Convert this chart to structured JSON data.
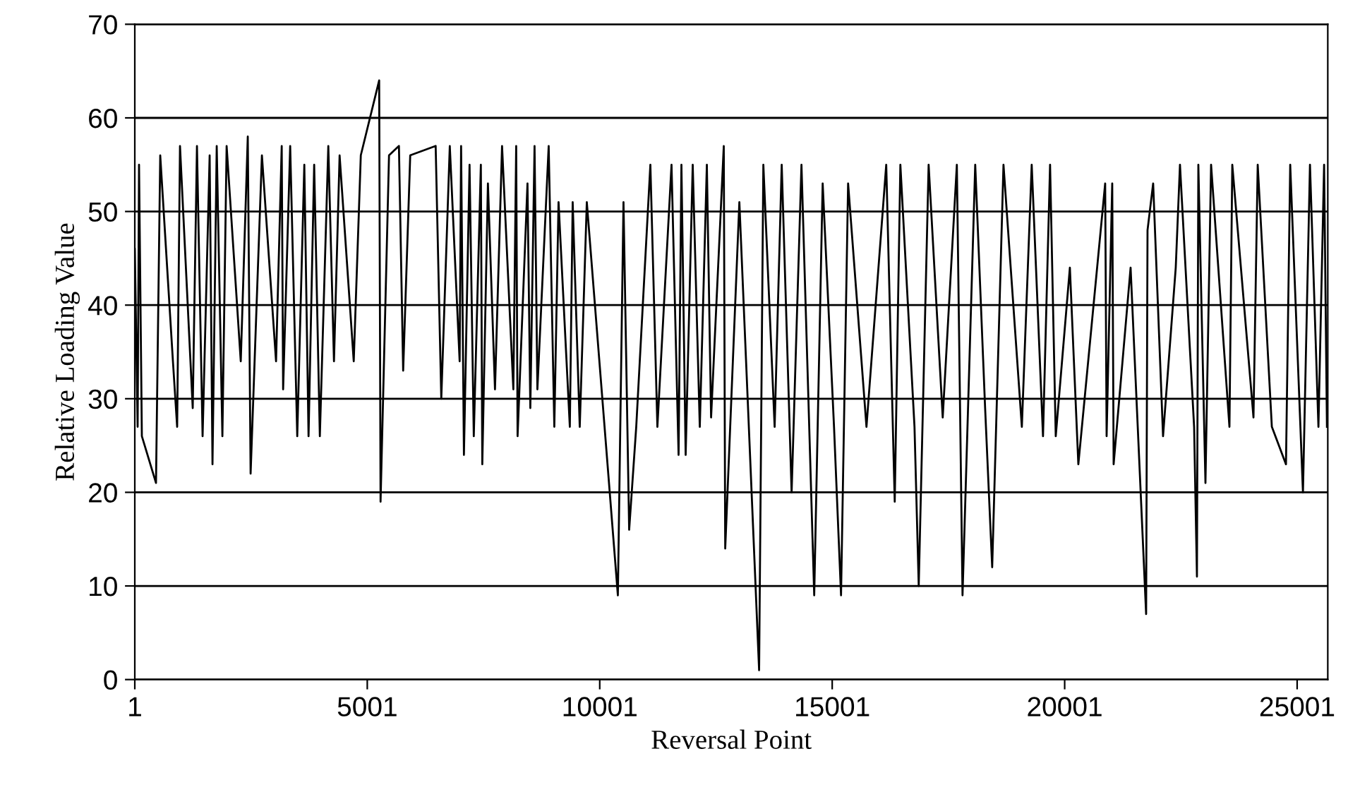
{
  "chart_data": {
    "type": "line",
    "xlabel": "Reversal Point",
    "ylabel": "Relative Loading Value",
    "x": [
      1,
      62,
      92,
      153,
      457,
      548,
      821,
      912,
      973,
      1247,
      1338,
      1459,
      1611,
      1672,
      1763,
      1885,
      1976,
      2280,
      2431,
      2492,
      2735,
      3039,
      3161,
      3191,
      3343,
      3495,
      3647,
      3738,
      3859,
      3981,
      4163,
      4285,
      4406,
      4710,
      4862,
      5257,
      5287,
      5469,
      5682,
      5773,
      5925,
      6472,
      6593,
      6776,
      6988,
      7019,
      7080,
      7201,
      7292,
      7444,
      7475,
      7596,
      7748,
      7900,
      8143,
      8204,
      8234,
      8447,
      8508,
      8599,
      8660,
      8903,
      9024,
      9115,
      9358,
      9419,
      9571,
      9723,
      10391,
      10512,
      10634,
      10786,
      11090,
      11241,
      11545,
      11697,
      11758,
      11849,
      12001,
      12153,
      12305,
      12396,
      12669,
      12700,
      13004,
      13429,
      13520,
      13763,
      13915,
      14128,
      14340,
      14614,
      14796,
      15040,
      15191,
      15343,
      15738,
      16163,
      16346,
      16467,
      16771,
      16862,
      17075,
      17378,
      17682,
      17804,
      18077,
      18290,
      18442,
      18685,
      19080,
      19292,
      19535,
      19687,
      19809,
      20113,
      20295,
      20872,
      20903,
      21024,
      21054,
      21419,
      21753,
      21783,
      21904,
      22117,
      22390,
      22481,
      22785,
      22846,
      22876,
      23029,
      23150,
      23545,
      23606,
      24062,
      24153,
      24457,
      24761,
      24852,
      25126,
      25277,
      25459,
      25581,
      25642
    ],
    "series": [
      {
        "color": "#000000",
        "values": [
          46,
          27,
          55,
          26,
          21,
          56,
          34,
          27,
          57,
          29,
          57,
          26,
          56,
          23,
          57,
          26,
          57,
          34,
          58,
          22,
          56,
          34,
          57,
          31,
          57,
          26,
          55,
          26,
          55,
          26,
          57,
          34,
          56,
          34,
          56,
          64,
          19,
          56,
          57,
          33,
          56,
          57,
          30,
          57,
          34,
          57,
          24,
          55,
          26,
          55,
          23,
          53,
          31,
          57,
          31,
          57,
          26,
          53,
          29,
          57,
          31,
          57,
          27,
          51,
          27,
          51,
          27,
          51,
          9,
          51,
          16,
          27,
          55,
          27,
          55,
          24,
          55,
          24,
          55,
          27,
          55,
          28,
          57,
          14,
          51,
          1,
          55,
          27,
          55,
          20,
          55,
          9,
          53,
          27,
          9,
          53,
          27,
          55,
          19,
          55,
          27,
          10,
          55,
          28,
          55,
          9,
          55,
          29,
          12,
          55,
          27,
          55,
          26,
          55,
          26,
          44,
          23,
          53,
          26,
          53,
          23,
          44,
          7,
          48,
          53,
          26,
          44,
          55,
          27,
          11,
          55,
          21,
          55,
          27,
          55,
          28,
          55,
          27,
          23,
          55,
          20,
          55,
          27,
          55,
          27
        ]
      }
    ],
    "xlim": [
      1,
      25660
    ],
    "xticks": [
      1,
      5001,
      10001,
      15001,
      20001,
      25001
    ],
    "ylim": [
      0,
      70
    ],
    "yticks": [
      0,
      10,
      20,
      30,
      40,
      50,
      60,
      70
    ],
    "grid": "y",
    "marker": "none",
    "line_style": "solid"
  }
}
